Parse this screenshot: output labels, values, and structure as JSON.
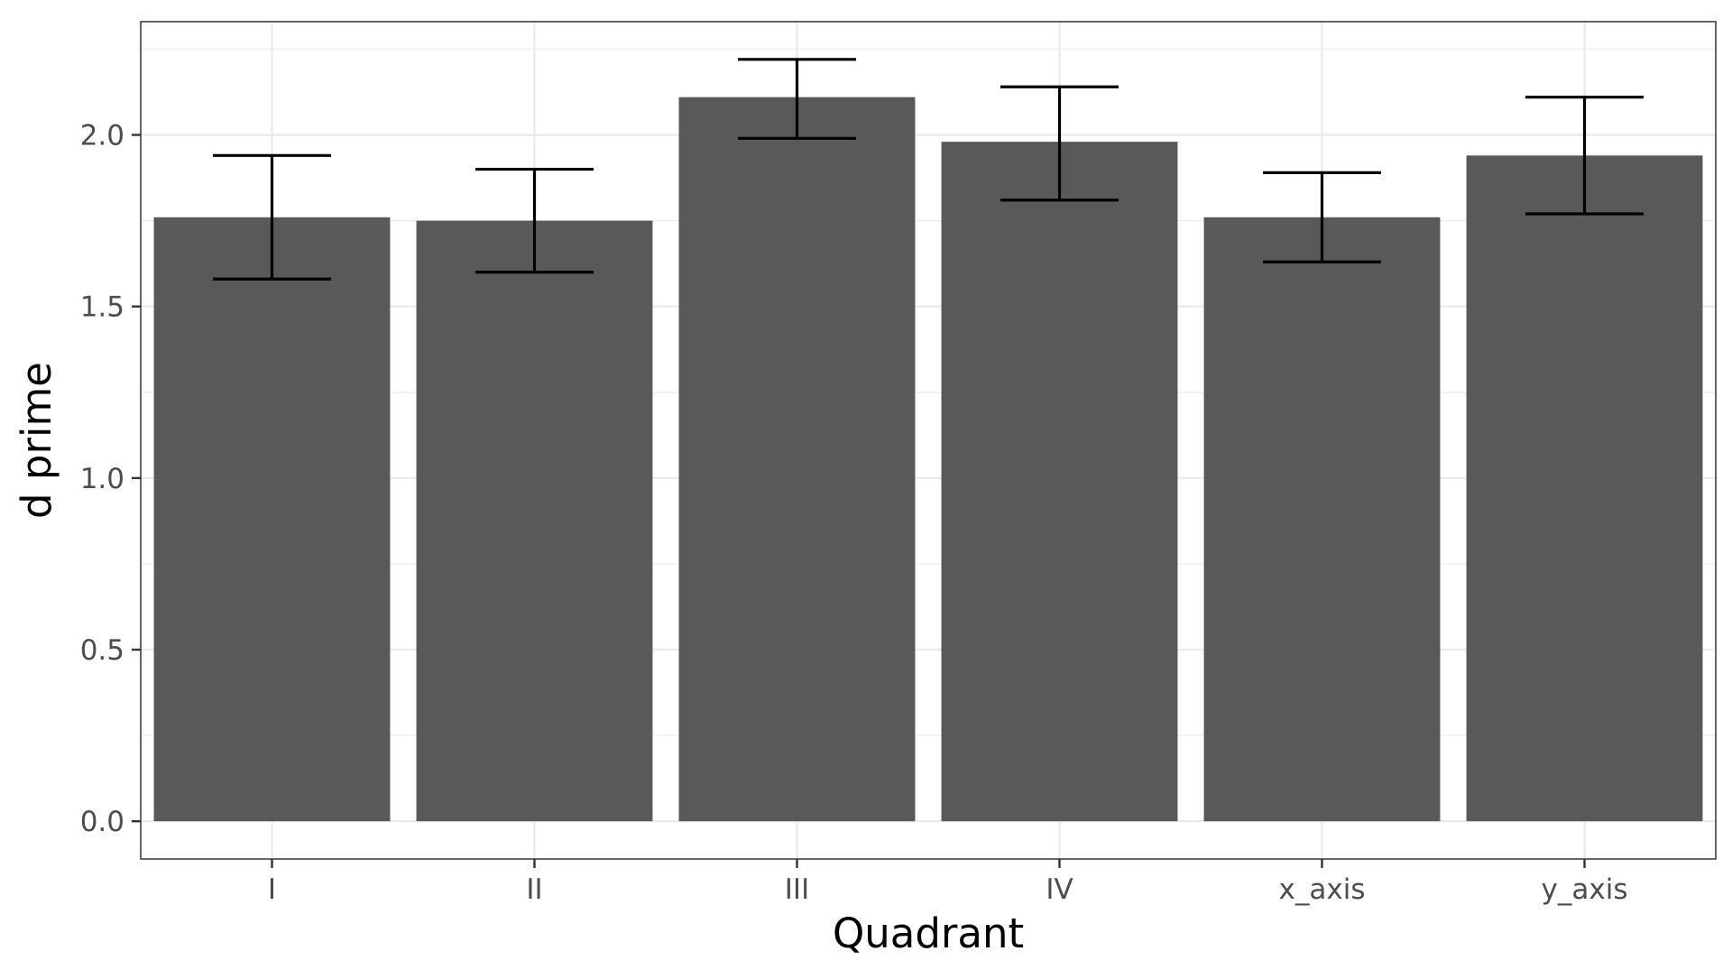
{
  "chart_data": {
    "type": "bar",
    "title": "",
    "xlabel": "Quadrant",
    "ylabel": "d prime",
    "categories": [
      "I",
      "II",
      "III",
      "IV",
      "x_axis",
      "y_axis"
    ],
    "values": [
      1.76,
      1.75,
      2.11,
      1.98,
      1.76,
      1.94
    ],
    "error_low": [
      1.58,
      1.6,
      1.99,
      1.81,
      1.63,
      1.77
    ],
    "error_high": [
      1.94,
      1.9,
      2.22,
      2.14,
      1.89,
      2.11
    ],
    "ylim": [
      -0.11,
      2.33
    ],
    "yticks": [
      0.0,
      0.5,
      1.0,
      1.5,
      2.0
    ],
    "ytick_labels": [
      "0.0",
      "0.5",
      "1.0",
      "1.5",
      "2.0"
    ],
    "grid": true,
    "bar_color": "#595959",
    "errorbar_color": "#000000",
    "gridline_color": "#ebebeb",
    "panel_border_color": "#333333"
  }
}
